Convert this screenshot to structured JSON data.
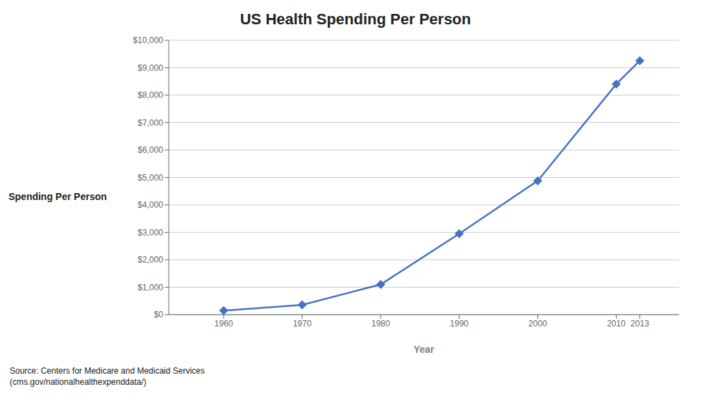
{
  "chart_data": {
    "type": "line",
    "title": "US Health Spending Per Person",
    "xlabel": "Year",
    "ylabel": "Spending Per Person",
    "x": [
      1960,
      1970,
      1980,
      1990,
      2000,
      2010,
      2013
    ],
    "values": [
      148,
      356,
      1100,
      2950,
      4878,
      8402,
      9255
    ],
    "color": "#4472C4",
    "marker": "diamond",
    "xlim": [
      1953,
      2018
    ],
    "xticks": [
      1960,
      1970,
      1980,
      1990,
      2000,
      2010,
      2013
    ],
    "ylim": [
      0,
      10000
    ],
    "yticks": [
      {
        "value": 0,
        "label": "$0"
      },
      {
        "value": 1000,
        "label": "$1,000"
      },
      {
        "value": 2000,
        "label": "$2,000"
      },
      {
        "value": 3000,
        "label": "$3,000"
      },
      {
        "value": 4000,
        "label": "$4,000"
      },
      {
        "value": 5000,
        "label": "$5,000"
      },
      {
        "value": 6000,
        "label": "$6,000"
      },
      {
        "value": 7000,
        "label": "$7,000"
      },
      {
        "value": 8000,
        "label": "$8,000"
      },
      {
        "value": 9000,
        "label": "$9,000"
      },
      {
        "value": 10000,
        "label": "$10,000"
      }
    ],
    "grid": true,
    "annotation": "Source: Centers for Medicare and Medicaid Services\n(cms.gov/nationalhealthexpenddata/)"
  }
}
